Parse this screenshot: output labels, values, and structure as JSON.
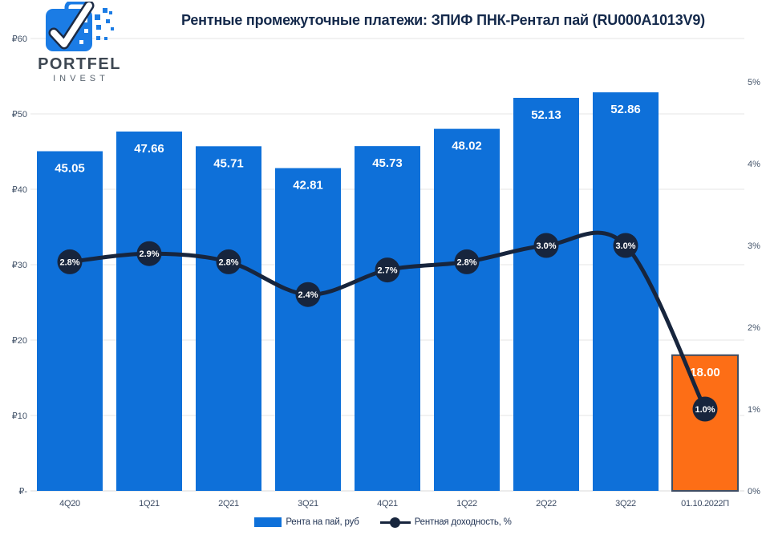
{
  "header": {
    "title": "Рентные промежуточные платежи: ЗПИФ ПНК-Рентал пай (RU000A1013V9)"
  },
  "brand": {
    "line1": "PORTFEL",
    "line2": "INVEST"
  },
  "colors": {
    "background": "#ffffff",
    "bar": "#0e70d9",
    "bar_forecast": "#fd6e16",
    "bar_forecast_border": "#3f4d63",
    "line": "#17253d",
    "marker": "#17253d",
    "bar_label": "#ffffff",
    "marker_label": "#ffffff",
    "grid": "#e4e4e4",
    "axis_line": "#d9d9d9",
    "axis_text": "#44546a",
    "category_text": "#3b4a63",
    "title_text": "#14294b",
    "legend_text": "#243656",
    "logo_blue": "#1b7ce5",
    "logo_dark": "#1c2b45",
    "logo_text": "#3d4752",
    "logo_subtext": "#5a6570"
  },
  "chart_data": {
    "type": "combo",
    "title": "Рентные промежуточные платежи: ЗПИФ ПНК-Рентал пай (RU000A1013V9)",
    "categories": [
      "4Q20",
      "1Q21",
      "2Q21",
      "3Q21",
      "4Q21",
      "1Q22",
      "2Q22",
      "3Q22",
      "01.10.2022П"
    ],
    "series": [
      {
        "name": "Рента на пай, руб",
        "type": "bar",
        "axis": "left",
        "values": [
          45.05,
          47.66,
          45.71,
          42.81,
          45.73,
          48.02,
          52.13,
          52.86,
          18.0
        ],
        "point_labels": [
          "45.05",
          "47.66",
          "45.71",
          "42.81",
          "45.73",
          "48.02",
          "52.13",
          "52.86",
          "18.00"
        ],
        "forecast_index": 8
      },
      {
        "name": "Рентная доходность, %",
        "type": "line",
        "axis": "right",
        "values": [
          2.8,
          2.9,
          2.8,
          2.4,
          2.7,
          2.8,
          3.0,
          3.0,
          1.0
        ],
        "point_labels": [
          "2.8%",
          "2.9%",
          "2.8%",
          "2.4%",
          "2.7%",
          "2.8%",
          "3.0%",
          "3.0%",
          "1.0%"
        ]
      }
    ],
    "left_axis": {
      "min": 0,
      "max": 60,
      "ticks": [
        {
          "value": 60,
          "label": "₽60"
        },
        {
          "value": 50,
          "label": "₽50"
        },
        {
          "value": 40,
          "label": "₽40"
        },
        {
          "value": 30,
          "label": "₽30"
        },
        {
          "value": 20,
          "label": "₽20"
        },
        {
          "value": 10,
          "label": "₽10"
        },
        {
          "value": 0,
          "label": "₽-"
        }
      ]
    },
    "right_axis": {
      "min": 0,
      "max": 5,
      "ticks": [
        {
          "value": 5,
          "label": "5%"
        },
        {
          "value": 4,
          "label": "4%"
        },
        {
          "value": 3,
          "label": "3%"
        },
        {
          "value": 2,
          "label": "2%"
        },
        {
          "value": 1,
          "label": "1%"
        },
        {
          "value": 0,
          "label": "0%"
        }
      ]
    },
    "grid": "horizontal",
    "legend_position": "bottom"
  }
}
